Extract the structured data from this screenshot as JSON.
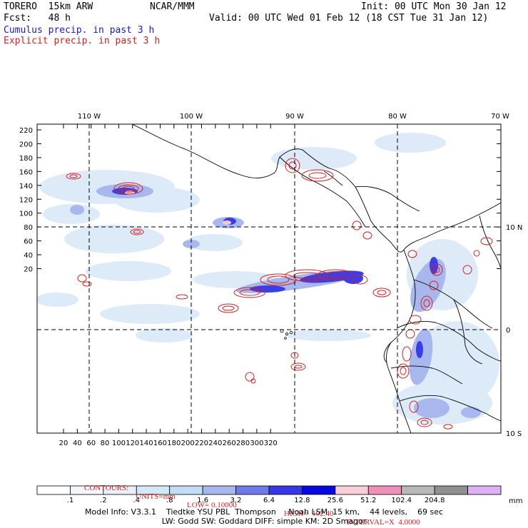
{
  "header": {
    "model": "TORERO  15km ARW",
    "center": "NCAR/MMM",
    "init": "Init: 00 UTC Mon 30 Jan 12",
    "fcst": "Fcst:   48 h",
    "valid": "Valid: 00 UTC Wed 01 Feb 12 (18 CST Tue 31 Jan 12)",
    "legend_cumulus": "Cumulus precip. in past 3 h",
    "legend_explicit": "Explicit precip. in past 3 h"
  },
  "map": {
    "lon_labels": [
      "110 W",
      "100 W",
      "90 W",
      "80 W",
      "70 W"
    ],
    "lat_labels": [
      "10 N",
      "0",
      "10 S"
    ],
    "y_ticks": [
      "220",
      "200",
      "180",
      "160",
      "140",
      "120",
      "100",
      "80",
      "60",
      "40",
      "20"
    ],
    "x_ticks": [
      "20",
      "40",
      "60",
      "80",
      "100",
      "120",
      "140",
      "160",
      "180",
      "200",
      "220",
      "240",
      "260",
      "280",
      "300",
      "320"
    ]
  },
  "contours": {
    "label": "CONTOURS:",
    "units": "UNITS=mm",
    "low": "LOW= 0.10000",
    "high": "HIGH=  102.40",
    "interval": "INTERVAL=X  4.0000"
  },
  "colorbar": {
    "levels": [
      ".1",
      ".2",
      ".4",
      ".8",
      "1.6",
      "3.2",
      "6.4",
      "12.8",
      "25.6",
      "51.2",
      "102.4",
      "204.8"
    ],
    "units": "mm",
    "colors": [
      "#ffffff",
      "#f2f7fc",
      "#e6f0fa",
      "#d4e8f8",
      "#c2dcf5",
      "#a6b6ee",
      "#6e7ae8",
      "#3737e6",
      "#0808e0",
      "#f8cfd8",
      "#f08fb8",
      "#b8b8b8",
      "#909090",
      "#dcb0f4"
    ]
  },
  "footer": {
    "line1": "Model Info: V3.3.1    Tiedtke YSU PBL  Thompson     Noah LSM  15 km,    44 levels,    69 sec",
    "line2": "LW: Godd SW: Goddard DIFF: simple KM: 2D Smagor"
  }
}
